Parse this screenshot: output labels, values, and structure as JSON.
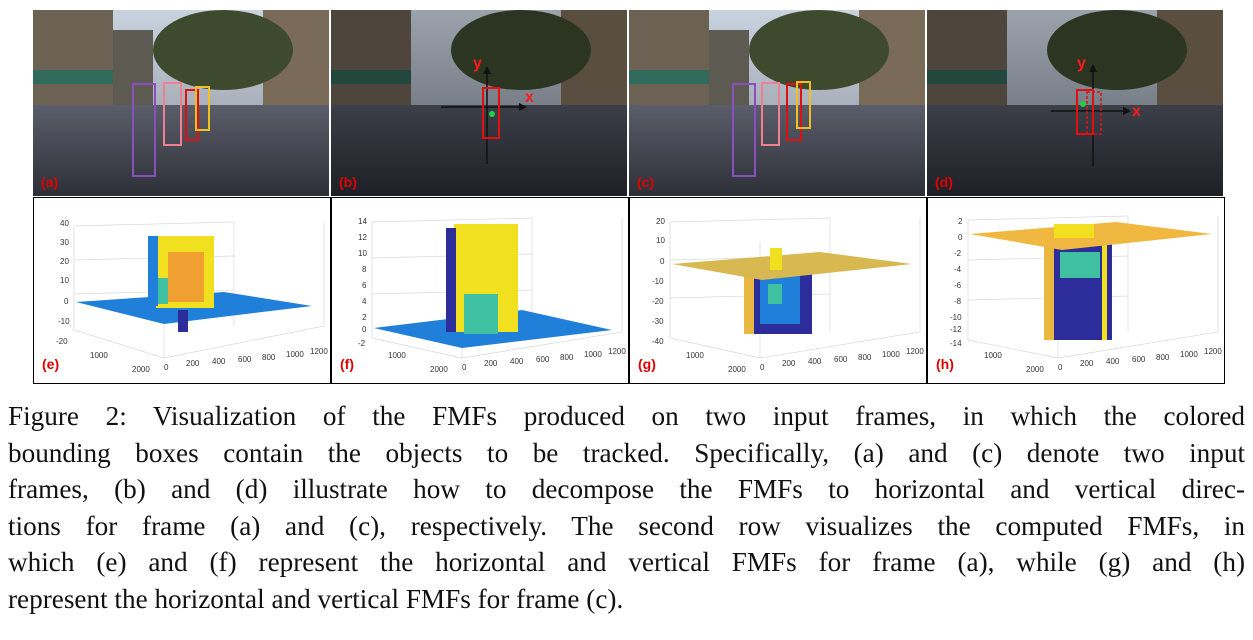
{
  "figure": {
    "top_row_labels": [
      "(a)",
      "(b)",
      "(c)",
      "(d)"
    ],
    "bottom_row_labels": [
      "(e)",
      "(f)",
      "(g)",
      "(h)"
    ],
    "axis_labels": {
      "x": "x",
      "y": "y"
    },
    "plots": [
      {
        "z_ticks": [
          "40",
          "30",
          "20",
          "10",
          "0",
          "-10",
          "-20"
        ],
        "x_ticks": [
          "0",
          "200",
          "400",
          "600",
          "800",
          "1000",
          "1200"
        ],
        "y_ticks": [
          "2000",
          "1000"
        ]
      },
      {
        "z_ticks": [
          "14",
          "12",
          "10",
          "8",
          "6",
          "4",
          "2",
          "0",
          "-2"
        ],
        "x_ticks": [
          "0",
          "200",
          "400",
          "600",
          "800",
          "1000",
          "1200"
        ],
        "y_ticks": [
          "2000",
          "1000"
        ]
      },
      {
        "z_ticks": [
          "20",
          "10",
          "0",
          "-10",
          "-20",
          "-30",
          "-40"
        ],
        "x_ticks": [
          "0",
          "200",
          "400",
          "600",
          "800",
          "1000",
          "1200"
        ],
        "y_ticks": [
          "2000",
          "1000"
        ]
      },
      {
        "z_ticks": [
          "2",
          "0",
          "-2",
          "-4",
          "-6",
          "-8",
          "-10",
          "-12",
          "-14"
        ],
        "x_ticks": [
          "0",
          "200",
          "400",
          "600",
          "800",
          "1000",
          "1200"
        ],
        "y_ticks": [
          "2000",
          "1000"
        ]
      }
    ],
    "colors": {
      "label_red": "#e00000",
      "box_purple": "#8a4fbf",
      "box_pink": "#f08090",
      "box_red": "#e01010",
      "box_yellow": "#f0c020",
      "surface_blue": "#1f7fd9",
      "surface_yellow": "#f0e020",
      "surface_teal": "#3fc0a0",
      "surface_navy": "#2c2c9a",
      "surface_gold": "#e8b840"
    }
  },
  "caption": {
    "lines": [
      "Figure 2: Visualization of the FMFs produced on two input frames, in which the colored",
      "bounding boxes contain the objects to be tracked. Specifically, (a) and (c) denote two input",
      "frames, (b) and (d) illustrate how to decompose the FMFs to horizontal and vertical direc-",
      "tions for frame (a) and (c), respectively. The second row visualizes the computed FMFs, in",
      "which (e) and (f) represent the horizontal and vertical FMFs for frame (a), while (g) and (h)",
      "represent the horizontal and vertical FMFs for frame (c)."
    ]
  }
}
